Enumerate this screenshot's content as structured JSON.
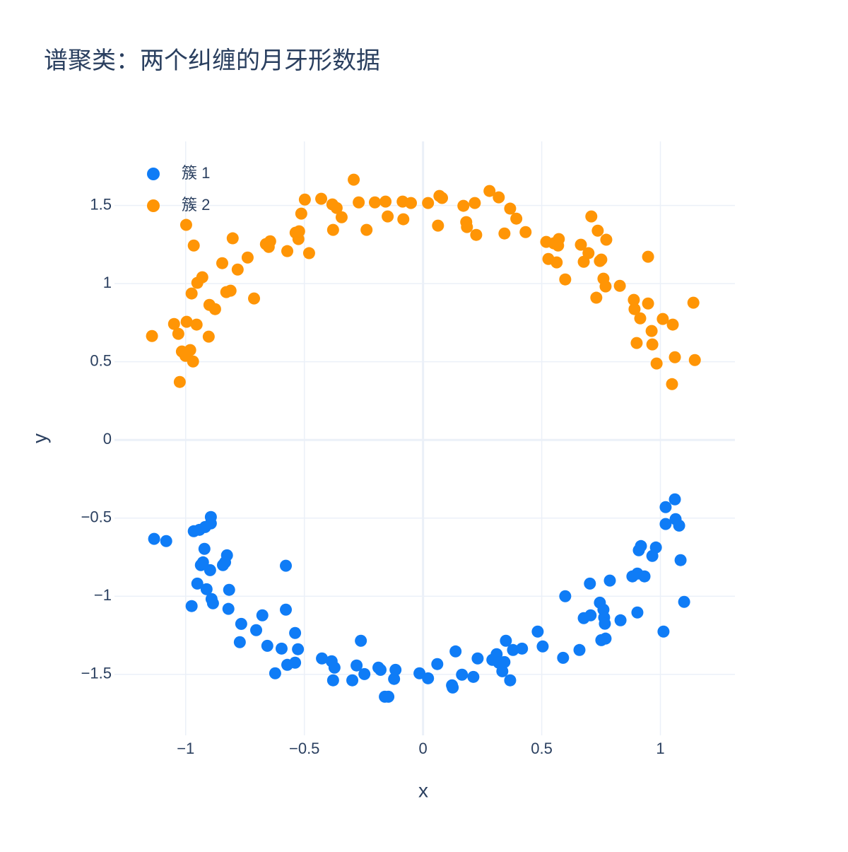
{
  "chart_data": {
    "type": "scatter",
    "title": "谱聚类：两个纠缠的月牙形数据",
    "x_label": "x",
    "y_label": "y",
    "xlim": [
      -1.3,
      1.314
    ],
    "ylim": [
      -1.89,
      1.91
    ],
    "xticks": [
      {
        "value": -1,
        "label": "−1"
      },
      {
        "value": -0.5,
        "label": "−0.5"
      },
      0,
      0.5,
      1
    ],
    "yticks": [
      {
        "value": -1.5,
        "label": "−1.5"
      },
      {
        "value": -1,
        "label": "−1"
      },
      {
        "value": -0.5,
        "label": "−0.5"
      },
      0,
      0.5,
      1,
      1.5
    ],
    "grid": true,
    "legend": "top-left",
    "series": [
      {
        "name": "簇 1",
        "color": "#0f7cf6",
        "x": [
          -1.133,
          -1.082,
          -0.966,
          -0.942,
          -0.918,
          -0.894,
          -0.894,
          -0.921,
          -0.936,
          -0.927,
          -0.897,
          -0.951,
          -0.912,
          -0.891,
          -0.885,
          -0.975,
          -0.843,
          -0.826,
          -0.834,
          -0.817,
          -0.82,
          -0.766,
          -0.772,
          -0.703,
          -0.677,
          -0.656,
          -0.596,
          -0.578,
          -0.578,
          -0.623,
          -0.572,
          -0.539,
          -0.539,
          -0.527,
          -0.426,
          -0.385,
          -0.373,
          -0.379,
          -0.298,
          -0.28,
          -0.262,
          -0.247,
          -0.188,
          -0.179,
          -0.161,
          -0.146,
          -0.122,
          -0.116,
          -0.015,
          0.021,
          0.06,
          0.122,
          0.125,
          0.137,
          0.164,
          0.212,
          0.23,
          0.292,
          0.31,
          0.319,
          0.334,
          0.343,
          0.349,
          0.367,
          0.379,
          0.417,
          0.483,
          0.504,
          0.59,
          0.599,
          0.659,
          0.677,
          0.703,
          0.706,
          0.751,
          0.745,
          0.76,
          0.763,
          0.766,
          0.769,
          0.787,
          0.832,
          0.882,
          0.903,
          0.903,
          0.909,
          0.918,
          0.933,
          0.981,
          0.966,
          1.013,
          1.022,
          1.022,
          1.061,
          1.064,
          1.079,
          1.085,
          1.1
        ],
        "values": [
          -0.633,
          -0.647,
          -0.584,
          -0.575,
          -0.557,
          -0.493,
          -0.534,
          -0.697,
          -0.801,
          -0.783,
          -0.833,
          -0.919,
          -0.955,
          -1.018,
          -1.045,
          -1.063,
          -0.801,
          -0.738,
          -0.783,
          -0.959,
          -1.081,
          -1.177,
          -1.294,
          -1.217,
          -1.122,
          -1.317,
          -1.335,
          -0.805,
          -1.086,
          -1.493,
          -1.439,
          -1.425,
          -1.235,
          -1.339,
          -1.398,
          -1.416,
          -1.457,
          -1.538,
          -1.538,
          -1.443,
          -1.285,
          -1.498,
          -1.457,
          -1.471,
          -1.643,
          -1.643,
          -1.529,
          -1.471,
          -1.493,
          -1.525,
          -1.434,
          -1.57,
          -1.584,
          -1.353,
          -1.502,
          -1.516,
          -1.398,
          -1.407,
          -1.371,
          -1.425,
          -1.48,
          -1.421,
          -1.285,
          -1.538,
          -1.344,
          -1.335,
          -1.226,
          -1.321,
          -1.394,
          -1.0,
          -1.344,
          -1.14,
          -0.919,
          -1.122,
          -1.281,
          -1.041,
          -1.086,
          -1.136,
          -1.176,
          -1.271,
          -0.9,
          -1.154,
          -0.873,
          -1.104,
          -0.855,
          -0.706,
          -0.679,
          -0.873,
          -0.688,
          -0.742,
          -1.226,
          -0.43,
          -0.538,
          -0.38,
          -0.507,
          -0.548,
          -0.769,
          -1.036
        ]
      },
      {
        "name": "簇 2",
        "color": "#ff9505",
        "x": [
          -1.142,
          -1.049,
          -1.025,
          -1.031,
          -1.016,
          -0.998,
          -0.996,
          -1.001,
          -0.981,
          -0.975,
          -0.969,
          -0.966,
          -0.954,
          -0.951,
          -0.93,
          -0.903,
          -0.9,
          -0.876,
          -0.846,
          -0.829,
          -0.811,
          -0.802,
          -0.781,
          -0.739,
          -0.712,
          -0.662,
          -0.65,
          -0.644,
          -0.572,
          -0.537,
          -0.525,
          -0.522,
          -0.513,
          -0.498,
          -0.48,
          -0.429,
          -0.382,
          -0.379,
          -0.364,
          -0.343,
          -0.292,
          -0.271,
          -0.238,
          -0.203,
          -0.158,
          -0.149,
          -0.086,
          -0.083,
          -0.051,
          0.021,
          0.063,
          0.069,
          0.08,
          0.17,
          0.182,
          0.185,
          0.218,
          0.224,
          0.28,
          0.319,
          0.343,
          0.367,
          0.393,
          0.432,
          0.519,
          0.528,
          0.551,
          0.563,
          0.572,
          0.569,
          0.599,
          0.665,
          0.677,
          0.697,
          0.709,
          0.73,
          0.736,
          0.745,
          0.751,
          0.76,
          0.772,
          0.769,
          0.829,
          0.888,
          0.891,
          0.9,
          0.915,
          0.948,
          0.948,
          0.963,
          0.966,
          0.984,
          1.01,
          1.049,
          1.052,
          1.061,
          1.139,
          1.145
        ],
        "values": [
          0.665,
          0.742,
          0.371,
          0.679,
          0.566,
          1.376,
          0.756,
          0.538,
          0.575,
          0.937,
          0.502,
          1.244,
          0.738,
          1.005,
          1.041,
          0.661,
          0.864,
          0.837,
          1.131,
          0.946,
          0.955,
          1.29,
          1.09,
          1.167,
          0.905,
          1.253,
          1.235,
          1.271,
          1.208,
          1.326,
          1.285,
          1.335,
          1.448,
          1.538,
          1.195,
          1.543,
          1.507,
          1.344,
          1.484,
          1.425,
          1.665,
          1.52,
          1.344,
          1.52,
          1.525,
          1.43,
          1.525,
          1.412,
          1.516,
          1.516,
          1.371,
          1.561,
          1.548,
          1.498,
          1.394,
          1.362,
          1.516,
          1.312,
          1.593,
          1.552,
          1.321,
          1.48,
          1.416,
          1.33,
          1.267,
          1.158,
          1.258,
          1.136,
          1.285,
          1.244,
          1.027,
          1.249,
          1.14,
          1.195,
          1.43,
          0.91,
          1.339,
          1.145,
          1.154,
          1.032,
          1.281,
          0.982,
          0.986,
          0.896,
          0.837,
          0.62,
          0.778,
          1.172,
          0.873,
          0.697,
          0.611,
          0.489,
          0.774,
          0.357,
          0.738,
          0.529,
          0.878,
          0.511
        ]
      }
    ]
  }
}
